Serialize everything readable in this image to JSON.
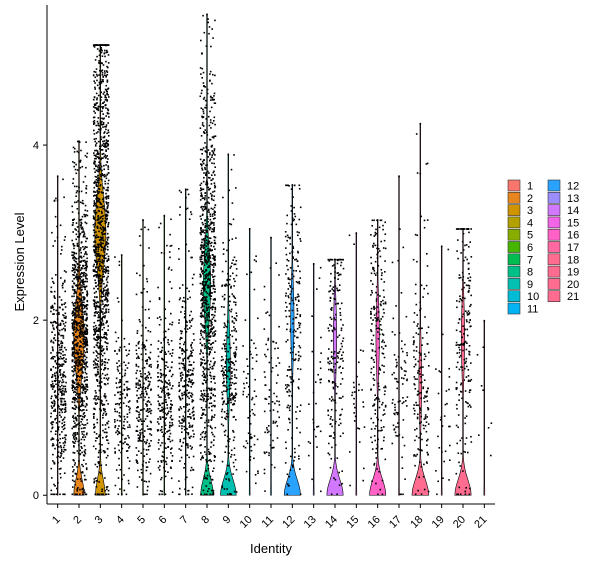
{
  "chart_data": {
    "type": "violin",
    "xlabel": "Identity",
    "ylabel": "Expression Level",
    "categories": [
      "1",
      "2",
      "3",
      "4",
      "5",
      "6",
      "7",
      "8",
      "9",
      "10",
      "11",
      "12",
      "13",
      "14",
      "15",
      "16",
      "17",
      "18",
      "19",
      "20",
      "21"
    ],
    "y_ticks": [
      "0",
      "2",
      "4"
    ],
    "ylim": [
      -0.1,
      5.6
    ],
    "grid": false,
    "legend_position": "right",
    "jitter_points": true,
    "series": [
      {
        "name": "1",
        "color": "#F8766D",
        "max": 3.65,
        "median_nonzero": 1.3,
        "violin_width": 0.05,
        "pos_frac": 0.55,
        "n_points": 420
      },
      {
        "name": "2",
        "color": "#E7851E",
        "max": 4.05,
        "median_nonzero": 1.8,
        "violin_width": 0.4,
        "pos_frac": 0.9,
        "n_points": 1000
      },
      {
        "name": "3",
        "color": "#D09400",
        "max": 5.15,
        "median_nonzero": 3.0,
        "violin_width": 0.4,
        "pos_frac": 0.97,
        "n_points": 1200
      },
      {
        "name": "4",
        "color": "#B2A100",
        "max": 2.75,
        "median_nonzero": 1.0,
        "violin_width": 0.03,
        "pos_frac": 0.25,
        "n_points": 160
      },
      {
        "name": "5",
        "color": "#89AC00",
        "max": 3.15,
        "median_nonzero": 1.1,
        "violin_width": 0.03,
        "pos_frac": 0.4,
        "n_points": 260
      },
      {
        "name": "6",
        "color": "#45B500",
        "max": 3.2,
        "median_nonzero": 1.1,
        "violin_width": 0.03,
        "pos_frac": 0.4,
        "n_points": 260
      },
      {
        "name": "7",
        "color": "#00BC51",
        "max": 3.5,
        "median_nonzero": 1.2,
        "violin_width": 0.03,
        "pos_frac": 0.45,
        "n_points": 300
      },
      {
        "name": "8",
        "color": "#00C087",
        "max": 5.5,
        "median_nonzero": 2.4,
        "violin_width": 0.45,
        "pos_frac": 0.65,
        "n_points": 900
      },
      {
        "name": "9",
        "color": "#00C0B2",
        "max": 3.9,
        "median_nonzero": 1.5,
        "violin_width": 0.4,
        "pos_frac": 0.35,
        "n_points": 300
      },
      {
        "name": "10",
        "color": "#00BCD6",
        "max": 3.05,
        "median_nonzero": 1.0,
        "violin_width": 0.02,
        "pos_frac": 0.15,
        "n_points": 70
      },
      {
        "name": "11",
        "color": "#00B3F2",
        "max": 2.95,
        "median_nonzero": 1.0,
        "violin_width": 0.02,
        "pos_frac": 0.12,
        "n_points": 80
      },
      {
        "name": "12",
        "color": "#29A3FF",
        "max": 3.55,
        "median_nonzero": 2.0,
        "violin_width": 0.4,
        "pos_frac": 0.3,
        "n_points": 220
      },
      {
        "name": "13",
        "color": "#9C8DFF",
        "max": 2.65,
        "median_nonzero": 1.0,
        "violin_width": 0.02,
        "pos_frac": 0.1,
        "n_points": 30
      },
      {
        "name": "14",
        "color": "#D277FF",
        "max": 2.7,
        "median_nonzero": 1.8,
        "violin_width": 0.4,
        "pos_frac": 0.3,
        "n_points": 200
      },
      {
        "name": "15",
        "color": "#F265E7",
        "max": 3.0,
        "median_nonzero": 1.0,
        "violin_width": 0.02,
        "pos_frac": 0.1,
        "n_points": 30
      },
      {
        "name": "16",
        "color": "#FF61C7",
        "max": 3.15,
        "median_nonzero": 1.8,
        "violin_width": 0.4,
        "pos_frac": 0.3,
        "n_points": 220
      },
      {
        "name": "17",
        "color": "#FF68A1",
        "max": 3.65,
        "median_nonzero": 1.2,
        "violin_width": 0.02,
        "pos_frac": 0.15,
        "n_points": 80
      },
      {
        "name": "18",
        "color": "#FF6C90",
        "max": 4.25,
        "median_nonzero": 1.3,
        "violin_width": 0.4,
        "pos_frac": 0.25,
        "n_points": 170
      },
      {
        "name": "19",
        "color": "#FF6C90",
        "max": 2.85,
        "median_nonzero": 1.0,
        "violin_width": 0.02,
        "pos_frac": 0.1,
        "n_points": 30
      },
      {
        "name": "20",
        "color": "#FF6C90",
        "max": 3.05,
        "median_nonzero": 1.8,
        "violin_width": 0.4,
        "pos_frac": 0.3,
        "n_points": 200
      },
      {
        "name": "21",
        "color": "#FF6C90",
        "max": 2.0,
        "median_nonzero": 1.0,
        "violin_width": 0.02,
        "pos_frac": 0.05,
        "n_points": 8
      }
    ]
  }
}
